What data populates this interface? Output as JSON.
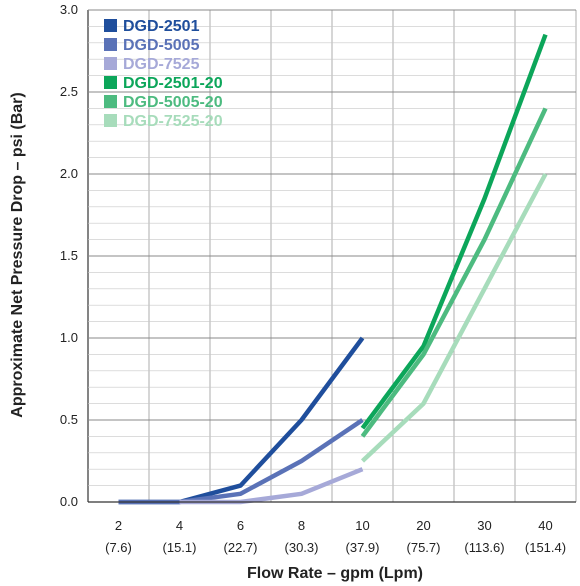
{
  "chart_data": {
    "type": "line",
    "title": "",
    "xlabel": "Flow Rate – gpm (Lpm)",
    "ylabel": "Approximate Net Pressure Drop – psi (Bar)",
    "categories": [
      "2",
      "4",
      "6",
      "8",
      "10",
      "20",
      "30",
      "40"
    ],
    "category_sublabels": [
      "(7.6)",
      "(15.1)",
      "(22.7)",
      "(30.3)",
      "(37.9)",
      "(75.7)",
      "(113.6)",
      "(151.4)"
    ],
    "y_ticks": [
      "0.0",
      "0.5",
      "1.0",
      "1.5",
      "2.0",
      "2.5",
      "3.0"
    ],
    "ylim": [
      0,
      3
    ],
    "grid": true,
    "legend_position": "top-left",
    "series": [
      {
        "name": "DGD-2501",
        "color": "#1f4e9c",
        "points": [
          [
            "2",
            0
          ],
          [
            "4",
            0
          ],
          [
            "6",
            0.1
          ],
          [
            "8",
            0.5
          ],
          [
            "10",
            1.0
          ]
        ]
      },
      {
        "name": "DGD-5005",
        "color": "#5a72b7",
        "points": [
          [
            "2",
            0
          ],
          [
            "4",
            0
          ],
          [
            "6",
            0.05
          ],
          [
            "8",
            0.25
          ],
          [
            "10",
            0.5
          ]
        ]
      },
      {
        "name": "DGD-7525",
        "color": "#a6a9d8",
        "points": [
          [
            "4",
            0
          ],
          [
            "6",
            0
          ],
          [
            "8",
            0.05
          ],
          [
            "10",
            0.2
          ]
        ]
      },
      {
        "name": "DGD-2501-20",
        "color": "#0ca65a",
        "points": [
          [
            "10",
            0.45
          ],
          [
            "20",
            0.95
          ],
          [
            "30",
            1.85
          ],
          [
            "40",
            2.85
          ]
        ]
      },
      {
        "name": "DGD-5005-20",
        "color": "#4dbb80",
        "points": [
          [
            "10",
            0.4
          ],
          [
            "20",
            0.9
          ],
          [
            "30",
            1.6
          ],
          [
            "40",
            2.4
          ]
        ]
      },
      {
        "name": "DGD-7525-20",
        "color": "#a7dcbb",
        "points": [
          [
            "10",
            0.25
          ],
          [
            "20",
            0.6
          ],
          [
            "30",
            1.3
          ],
          [
            "40",
            2.0
          ]
        ]
      }
    ]
  }
}
